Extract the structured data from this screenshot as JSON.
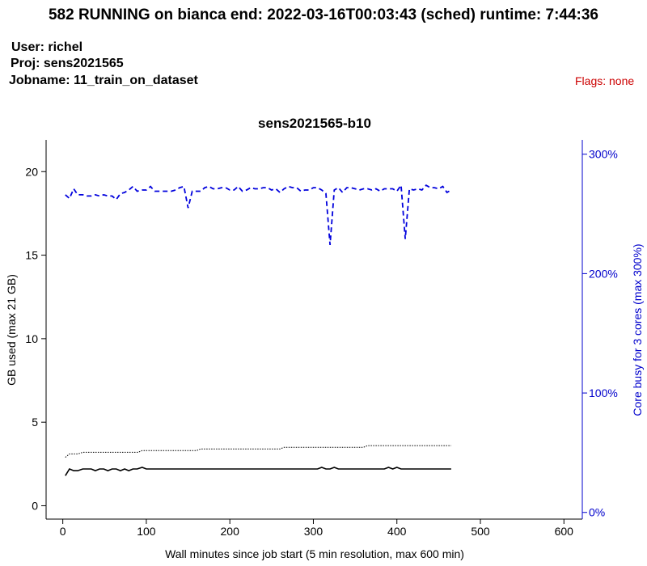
{
  "header": {
    "title": "582 RUNNING on bianca  end: 2022-03-16T00:03:43 (sched)  runtime: 7:44:36",
    "user": "User: richel",
    "project": "Proj: sens2021565",
    "jobname": "Jobname: 11_train_on_dataset",
    "flags": "Flags: none"
  },
  "colors": {
    "axis": "#000000",
    "right_axis": "#0000cc",
    "core_series": "#0000dd",
    "memory_series": "#000000"
  },
  "chart_data": {
    "type": "line",
    "title": "sens2021565-b10",
    "xlabel": "Wall minutes since job start (5 min resolution, max 600 min)",
    "ylabel": "GB used (max 21 GB)",
    "y2label": "Core busy for 3 cores (max 300%)",
    "xlim": [
      -20,
      622
    ],
    "ylim": [
      -0.8,
      21.9
    ],
    "y2lim": [
      -5.6,
      312
    ],
    "xticks": [
      0,
      100,
      200,
      300,
      400,
      500,
      600
    ],
    "yticks": [
      0,
      5,
      10,
      15,
      20
    ],
    "y2ticks": [
      0,
      100,
      200,
      300
    ],
    "y2tick_labels": [
      "0%",
      "100%",
      "200%",
      "300%"
    ],
    "grid": false,
    "legend": "none",
    "series": [
      {
        "axis": "y2",
        "style": "dashed",
        "points": [
          [
            3,
            266
          ],
          [
            8,
            263
          ],
          [
            13,
            271
          ],
          [
            18,
            266
          ],
          [
            24,
            266
          ],
          [
            29,
            265
          ],
          [
            34,
            265
          ],
          [
            39,
            266
          ],
          [
            44,
            265
          ],
          [
            49,
            266
          ],
          [
            54,
            265
          ],
          [
            59,
            265
          ],
          [
            64,
            262
          ],
          [
            69,
            267
          ],
          [
            74,
            268
          ],
          [
            79,
            270
          ],
          [
            84,
            273
          ],
          [
            89,
            269
          ],
          [
            95,
            270
          ],
          [
            100,
            270
          ],
          [
            105,
            273
          ],
          [
            110,
            269
          ],
          [
            115,
            269
          ],
          [
            120,
            269
          ],
          [
            125,
            269
          ],
          [
            130,
            269
          ],
          [
            135,
            270
          ],
          [
            140,
            272
          ],
          [
            145,
            273
          ],
          [
            150,
            255
          ],
          [
            155,
            269
          ],
          [
            160,
            269
          ],
          [
            165,
            269
          ],
          [
            170,
            272
          ],
          [
            175,
            273
          ],
          [
            180,
            271
          ],
          [
            185,
            271
          ],
          [
            190,
            272
          ],
          [
            195,
            272
          ],
          [
            200,
            270
          ],
          [
            205,
            270
          ],
          [
            210,
            273
          ],
          [
            215,
            269
          ],
          [
            220,
            270
          ],
          [
            225,
            272
          ],
          [
            230,
            271
          ],
          [
            235,
            271
          ],
          [
            240,
            272
          ],
          [
            245,
            272
          ],
          [
            250,
            270
          ],
          [
            255,
            271
          ],
          [
            260,
            268
          ],
          [
            265,
            271
          ],
          [
            270,
            273
          ],
          [
            275,
            272
          ],
          [
            280,
            272
          ],
          [
            285,
            269
          ],
          [
            290,
            270
          ],
          [
            295,
            270
          ],
          [
            300,
            272
          ],
          [
            305,
            272
          ],
          [
            310,
            270
          ],
          [
            315,
            267
          ],
          [
            320,
            224
          ],
          [
            325,
            270
          ],
          [
            330,
            272
          ],
          [
            335,
            268
          ],
          [
            340,
            272
          ],
          [
            345,
            272
          ],
          [
            350,
            271
          ],
          [
            355,
            270
          ],
          [
            360,
            271
          ],
          [
            365,
            271
          ],
          [
            370,
            270
          ],
          [
            375,
            271
          ],
          [
            380,
            269
          ],
          [
            385,
            271
          ],
          [
            390,
            271
          ],
          [
            395,
            271
          ],
          [
            400,
            269
          ],
          [
            405,
            274
          ],
          [
            410,
            229
          ],
          [
            415,
            271
          ],
          [
            420,
            270
          ],
          [
            425,
            271
          ],
          [
            430,
            270
          ],
          [
            435,
            274
          ],
          [
            440,
            272
          ],
          [
            445,
            272
          ],
          [
            450,
            271
          ],
          [
            455,
            273
          ],
          [
            460,
            268
          ],
          [
            465,
            270
          ]
        ]
      },
      {
        "axis": "y",
        "style": "dotted",
        "points": [
          [
            3,
            2.9
          ],
          [
            8,
            3.1
          ],
          [
            18,
            3.1
          ],
          [
            24,
            3.2
          ],
          [
            90,
            3.2
          ],
          [
            95,
            3.3
          ],
          [
            160,
            3.3
          ],
          [
            165,
            3.4
          ],
          [
            260,
            3.4
          ],
          [
            265,
            3.5
          ],
          [
            360,
            3.5
          ],
          [
            365,
            3.6
          ],
          [
            465,
            3.6
          ]
        ]
      },
      {
        "axis": "y",
        "style": "solid",
        "points": [
          [
            3,
            1.8
          ],
          [
            8,
            2.2
          ],
          [
            13,
            2.1
          ],
          [
            18,
            2.1
          ],
          [
            24,
            2.2
          ],
          [
            29,
            2.2
          ],
          [
            34,
            2.2
          ],
          [
            39,
            2.1
          ],
          [
            44,
            2.2
          ],
          [
            49,
            2.2
          ],
          [
            54,
            2.1
          ],
          [
            59,
            2.2
          ],
          [
            64,
            2.2
          ],
          [
            69,
            2.1
          ],
          [
            74,
            2.2
          ],
          [
            79,
            2.1
          ],
          [
            84,
            2.2
          ],
          [
            89,
            2.2
          ],
          [
            95,
            2.3
          ],
          [
            100,
            2.2
          ],
          [
            140,
            2.2
          ],
          [
            200,
            2.2
          ],
          [
            260,
            2.2
          ],
          [
            305,
            2.2
          ],
          [
            310,
            2.3
          ],
          [
            315,
            2.2
          ],
          [
            320,
            2.2
          ],
          [
            325,
            2.3
          ],
          [
            330,
            2.2
          ],
          [
            385,
            2.2
          ],
          [
            390,
            2.3
          ],
          [
            395,
            2.2
          ],
          [
            400,
            2.3
          ],
          [
            405,
            2.2
          ],
          [
            465,
            2.2
          ]
        ]
      }
    ]
  }
}
